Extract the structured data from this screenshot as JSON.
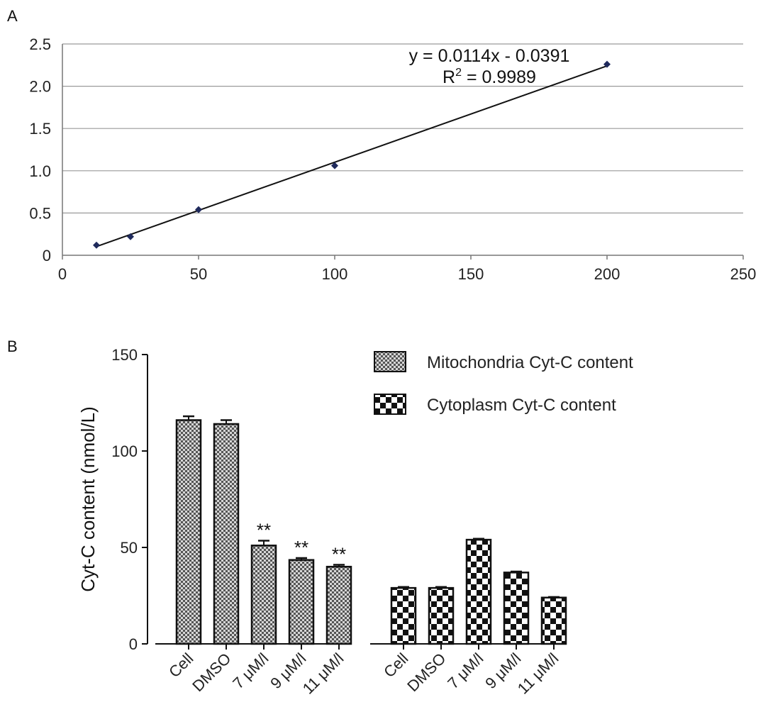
{
  "panels": {
    "a_label": "A",
    "b_label": "B"
  },
  "chart_data": [
    {
      "type": "scatter",
      "panel": "A",
      "x": [
        12.5,
        25,
        50,
        100,
        200
      ],
      "y": [
        0.12,
        0.22,
        0.54,
        1.06,
        2.26
      ],
      "xlim": [
        0,
        250
      ],
      "ylim": [
        0,
        2.5
      ],
      "xticks": [
        "0",
        "50",
        "100",
        "150",
        "200",
        "250"
      ],
      "yticks": [
        "0",
        "0.5",
        "1.0",
        "1.5",
        "2.0",
        "2.5"
      ],
      "xtick_values": [
        0,
        50,
        100,
        150,
        200,
        250
      ],
      "ytick_values": [
        0,
        0.5,
        1.0,
        1.5,
        2.0,
        2.5
      ],
      "trendline": {
        "slope": 0.0114,
        "intercept": -0.0391
      },
      "equation": "y = 0.0114x - 0.0391",
      "r2_prefix": "R",
      "r2_sup": "2",
      "r2_suffix": " = 0.9989",
      "grid": true,
      "marker_color": "#1f2a5c"
    },
    {
      "type": "bar",
      "panel": "B",
      "ylabel": "Cyt-C content (nmol/L)",
      "ylim": [
        0,
        150
      ],
      "yticks": [
        "0",
        "50",
        "100",
        "150"
      ],
      "ytick_values": [
        0,
        50,
        100,
        150
      ],
      "categories": [
        "Cell",
        "DMSO",
        "7 μM/l",
        "9 μM/l",
        "11 μM/l"
      ],
      "series": [
        {
          "name": "Mitochondria Cyt-C content",
          "values": [
            116,
            114,
            51,
            43.5,
            40
          ],
          "errors": [
            2,
            2,
            2.5,
            1,
            1
          ],
          "significance": [
            "",
            "",
            "**",
            "**",
            "**"
          ],
          "pattern": "dots"
        },
        {
          "name": "Cytoplasm Cyt-C content",
          "values": [
            29,
            29,
            54,
            37,
            24
          ],
          "errors": [
            0.5,
            0.5,
            0.5,
            0.5,
            0.3
          ],
          "significance": [
            "",
            "",
            "",
            "",
            ""
          ],
          "pattern": "checker"
        }
      ],
      "legend_position": "top-right"
    }
  ]
}
